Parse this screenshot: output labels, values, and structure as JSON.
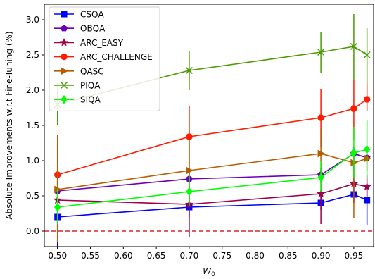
{
  "chart_data": {
    "type": "line",
    "xlabel": "W",
    "xlabel_sub": "0",
    "ylabel": "Absolute Improvements w.r.t Fine-Tuning (%)",
    "xlim": [
      0.48,
      0.98
    ],
    "ylim": [
      -0.22,
      3.22
    ],
    "x_ticks": [
      0.5,
      0.55,
      0.6,
      0.65,
      0.7,
      0.75,
      0.8,
      0.85,
      0.9,
      0.95
    ],
    "x_tick_labels": [
      "0.50",
      "0.55",
      "0.60",
      "0.65",
      "0.70",
      "0.75",
      "0.80",
      "0.85",
      "0.90",
      "0.95"
    ],
    "y_ticks": [
      0.0,
      0.5,
      1.0,
      1.5,
      2.0,
      2.5,
      3.0
    ],
    "y_tick_labels": [
      "0.0",
      "0.5",
      "1.0",
      "1.5",
      "2.0",
      "2.5",
      "3.0"
    ],
    "reference_line": {
      "y": 0.0,
      "color": "#d62728",
      "style": "dashed"
    },
    "grid": false,
    "legend_position": "top-left",
    "x": [
      0.5,
      0.7,
      0.9,
      0.95,
      0.97
    ],
    "series": [
      {
        "name": "CSQA",
        "color": "#0000ff",
        "marker": "square",
        "values": [
          0.2,
          0.34,
          0.4,
          0.52,
          0.44
        ],
        "err_low": [
          -0.25,
          0.2,
          0.3,
          0.4,
          0.08
        ],
        "err_high": [
          0.6,
          0.5,
          0.5,
          0.62,
          0.6
        ]
      },
      {
        "name": "OBQA",
        "color": "#6a00b8",
        "marker": "pentagon",
        "values": [
          0.57,
          0.74,
          0.8,
          1.1,
          1.04
        ],
        "err_low": [
          0.4,
          0.6,
          0.7,
          0.85,
          0.95
        ],
        "err_high": [
          0.7,
          0.9,
          0.9,
          1.2,
          1.12
        ]
      },
      {
        "name": "ARC_EASY",
        "color": "#a0004a",
        "marker": "star",
        "values": [
          0.44,
          0.38,
          0.53,
          0.67,
          0.63
        ],
        "err_low": [
          0.0,
          -0.08,
          0.1,
          0.4,
          0.45
        ],
        "err_high": [
          0.75,
          0.75,
          0.9,
          0.85,
          0.8
        ]
      },
      {
        "name": "ARC_CHALLENGE",
        "color": "#ff1a00",
        "marker": "circle",
        "values": [
          0.8,
          1.34,
          1.61,
          1.74,
          1.87
        ],
        "err_low": [
          0.4,
          0.9,
          1.2,
          1.3,
          1.7
        ],
        "err_high": [
          1.25,
          1.77,
          2.02,
          2.15,
          2.1
        ]
      },
      {
        "name": "QASC",
        "color": "#b85c00",
        "marker": "triangle-right",
        "values": [
          0.59,
          0.86,
          1.1,
          0.97,
          1.03
        ],
        "err_low": [
          -0.15,
          0.4,
          0.8,
          0.18,
          0.85
        ],
        "err_high": [
          1.37,
          1.3,
          1.45,
          1.2,
          1.15
        ]
      },
      {
        "name": "PIQA",
        "color": "#4a9a00",
        "marker": "x",
        "values": [
          1.8,
          2.28,
          2.54,
          2.62,
          2.5
        ],
        "err_low": [
          1.5,
          2.0,
          2.25,
          2.15,
          2.1
        ],
        "err_high": [
          2.1,
          2.55,
          2.82,
          3.08,
          2.88
        ]
      },
      {
        "name": "SIQA",
        "color": "#00ff00",
        "marker": "diamond",
        "values": [
          0.34,
          0.56,
          0.76,
          1.11,
          1.16
        ],
        "err_low": [
          0.1,
          0.35,
          0.55,
          0.75,
          0.75
        ],
        "err_high": [
          0.6,
          0.8,
          1.0,
          1.48,
          1.58
        ]
      }
    ]
  }
}
